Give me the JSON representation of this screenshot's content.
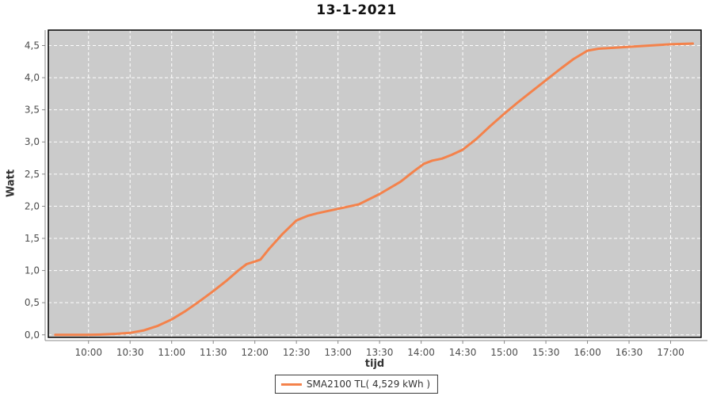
{
  "chart_data": {
    "type": "line",
    "title": "13-1-2021",
    "xlabel": "tijd",
    "ylabel": "Watt",
    "legend_position": "bottom-center",
    "grid": "dashed-white",
    "plot_bg": "#cbcbcb",
    "plot_border": "#000000",
    "axis_color": "#888888",
    "tick_label_color": "#4d4d4d",
    "x_domain": [
      "09:31",
      "17:22"
    ],
    "x_tick_labels": [
      "10:00",
      "10:30",
      "11:00",
      "11:30",
      "12:00",
      "12:30",
      "13:00",
      "13:30",
      "14:00",
      "14:30",
      "15:00",
      "15:30",
      "16:00",
      "16:30",
      "17:00"
    ],
    "y_ticks": [
      0.0,
      0.5,
      1.0,
      1.5,
      2.0,
      2.5,
      3.0,
      3.5,
      4.0,
      4.5
    ],
    "y_tick_labels": [
      "0,0",
      "0,5",
      "1,0",
      "1,5",
      "2,0",
      "2,5",
      "3,0",
      "3,5",
      "4,0",
      "4,5"
    ],
    "ylim": [
      -0.04,
      4.74
    ],
    "series": [
      {
        "name": "SMA2100 TL( 4,529 kWh )",
        "color": "#f4824b",
        "points": [
          [
            "09:36",
            0.0
          ],
          [
            "09:45",
            0.0
          ],
          [
            "10:00",
            0.0
          ],
          [
            "10:10",
            0.005
          ],
          [
            "10:20",
            0.015
          ],
          [
            "10:30",
            0.03
          ],
          [
            "10:40",
            0.07
          ],
          [
            "10:50",
            0.14
          ],
          [
            "11:00",
            0.24
          ],
          [
            "11:10",
            0.37
          ],
          [
            "11:20",
            0.52
          ],
          [
            "11:30",
            0.68
          ],
          [
            "11:40",
            0.85
          ],
          [
            "11:48",
            1.0
          ],
          [
            "11:54",
            1.1
          ],
          [
            "12:00",
            1.14
          ],
          [
            "12:04",
            1.17
          ],
          [
            "12:10",
            1.33
          ],
          [
            "12:20",
            1.57
          ],
          [
            "12:30",
            1.78
          ],
          [
            "12:38",
            1.85
          ],
          [
            "12:45",
            1.89
          ],
          [
            "13:00",
            1.96
          ],
          [
            "13:15",
            2.03
          ],
          [
            "13:30",
            2.19
          ],
          [
            "13:45",
            2.38
          ],
          [
            "13:55",
            2.55
          ],
          [
            "14:02",
            2.66
          ],
          [
            "14:08",
            2.71
          ],
          [
            "14:15",
            2.74
          ],
          [
            "14:22",
            2.8
          ],
          [
            "14:30",
            2.88
          ],
          [
            "14:40",
            3.05
          ],
          [
            "14:50",
            3.25
          ],
          [
            "15:00",
            3.44
          ],
          [
            "15:10",
            3.62
          ],
          [
            "15:20",
            3.79
          ],
          [
            "15:30",
            3.96
          ],
          [
            "15:40",
            4.13
          ],
          [
            "15:50",
            4.29
          ],
          [
            "16:00",
            4.42
          ],
          [
            "16:08",
            4.45
          ],
          [
            "16:15",
            4.46
          ],
          [
            "16:30",
            4.48
          ],
          [
            "16:45",
            4.5
          ],
          [
            "17:00",
            4.52
          ],
          [
            "17:16",
            4.53
          ]
        ]
      }
    ]
  }
}
